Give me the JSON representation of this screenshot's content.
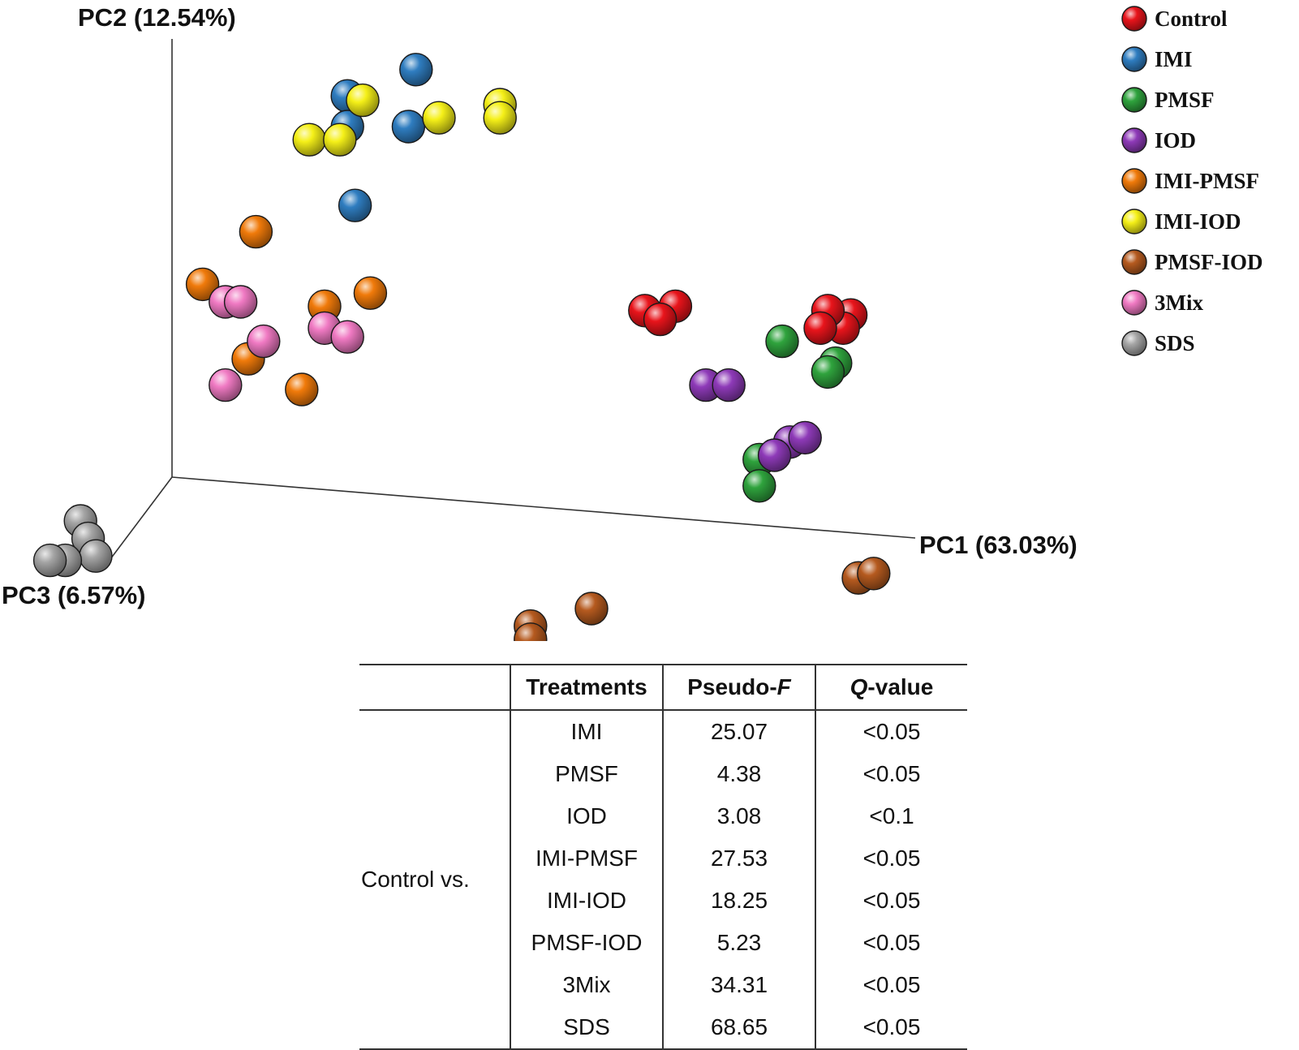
{
  "chart_data": {
    "type": "scatter",
    "projection": "3d",
    "title": "",
    "axes": {
      "pc1": "PC1 (63.03%)",
      "pc2": "PC2 (12.54%)",
      "pc3": "PC3 (6.57%)"
    },
    "legend_position": "top-right",
    "series": [
      {
        "name": "Control",
        "color": "#e8141b",
        "points": [
          [
            0.62,
            0.38
          ],
          [
            0.66,
            0.39
          ],
          [
            0.64,
            0.36
          ],
          [
            0.89,
            0.37
          ],
          [
            0.88,
            0.34
          ],
          [
            0.86,
            0.38
          ],
          [
            0.85,
            0.34
          ]
        ]
      },
      {
        "name": "IMI",
        "color": "#2f7dc0",
        "points": [
          [
            0.23,
            0.87
          ],
          [
            0.23,
            0.8
          ],
          [
            0.32,
            0.93
          ],
          [
            0.31,
            0.8
          ],
          [
            0.24,
            0.62
          ]
        ]
      },
      {
        "name": "PMSF",
        "color": "#2fa33d",
        "points": [
          [
            0.8,
            0.31
          ],
          [
            0.87,
            0.26
          ],
          [
            0.86,
            0.24
          ],
          [
            0.77,
            0.04
          ],
          [
            0.77,
            -0.02
          ]
        ]
      },
      {
        "name": "IOD",
        "color": "#8e3ab8",
        "points": [
          [
            0.7,
            0.21
          ],
          [
            0.73,
            0.21
          ],
          [
            0.81,
            0.08
          ],
          [
            0.83,
            0.09
          ],
          [
            0.79,
            0.05
          ]
        ]
      },
      {
        "name": "IMI-PMSF",
        "color": "#f07a0a",
        "points": [
          [
            0.11,
            0.56
          ],
          [
            0.04,
            0.44
          ],
          [
            0.26,
            0.42
          ],
          [
            0.2,
            0.39
          ],
          [
            0.1,
            0.27
          ],
          [
            0.17,
            0.2
          ]
        ]
      },
      {
        "name": "IMI-IOD",
        "color": "#f5f018",
        "points": [
          [
            0.25,
            0.86
          ],
          [
            0.18,
            0.77
          ],
          [
            0.22,
            0.77
          ],
          [
            0.35,
            0.82
          ],
          [
            0.43,
            0.85
          ],
          [
            0.43,
            0.82
          ]
        ]
      },
      {
        "name": "PMSF-IOD",
        "color": "#b55a1f",
        "points": [
          [
            0.9,
            -0.23
          ],
          [
            0.92,
            -0.22
          ],
          [
            0.47,
            -0.34
          ],
          [
            0.47,
            -0.37
          ],
          [
            0.55,
            -0.3
          ]
        ]
      },
      {
        "name": "3Mix",
        "color": "#f07ac3",
        "points": [
          [
            0.07,
            0.4
          ],
          [
            0.09,
            0.4
          ],
          [
            0.12,
            0.31
          ],
          [
            0.2,
            0.34
          ],
          [
            0.23,
            0.32
          ],
          [
            0.07,
            0.21
          ]
        ]
      },
      {
        "name": "SDS",
        "color": "#a5a5a5",
        "points": [
          [
            -0.12,
            -0.1
          ],
          [
            -0.11,
            -0.14
          ],
          [
            -0.1,
            -0.18
          ],
          [
            -0.14,
            -0.19
          ],
          [
            -0.16,
            -0.19
          ]
        ]
      }
    ],
    "table": {
      "headers": [
        "",
        "Treatments",
        "Pseudo-F",
        "Q-value"
      ],
      "group_label": "Control vs.",
      "rows": [
        {
          "treatment": "IMI",
          "pseudo_f": "25.07",
          "q_value": "<0.05"
        },
        {
          "treatment": "PMSF",
          "pseudo_f": "4.38",
          "q_value": "<0.05"
        },
        {
          "treatment": "IOD",
          "pseudo_f": "3.08",
          "q_value": "<0.1"
        },
        {
          "treatment": "IMI-PMSF",
          "pseudo_f": "27.53",
          "q_value": "<0.05"
        },
        {
          "treatment": "IMI-IOD",
          "pseudo_f": "18.25",
          "q_value": "<0.05"
        },
        {
          "treatment": "PMSF-IOD",
          "pseudo_f": "5.23",
          "q_value": "<0.05"
        },
        {
          "treatment": "3Mix",
          "pseudo_f": "34.31",
          "q_value": "<0.05"
        },
        {
          "treatment": "SDS",
          "pseudo_f": "68.65",
          "q_value": "<0.05"
        }
      ]
    }
  }
}
